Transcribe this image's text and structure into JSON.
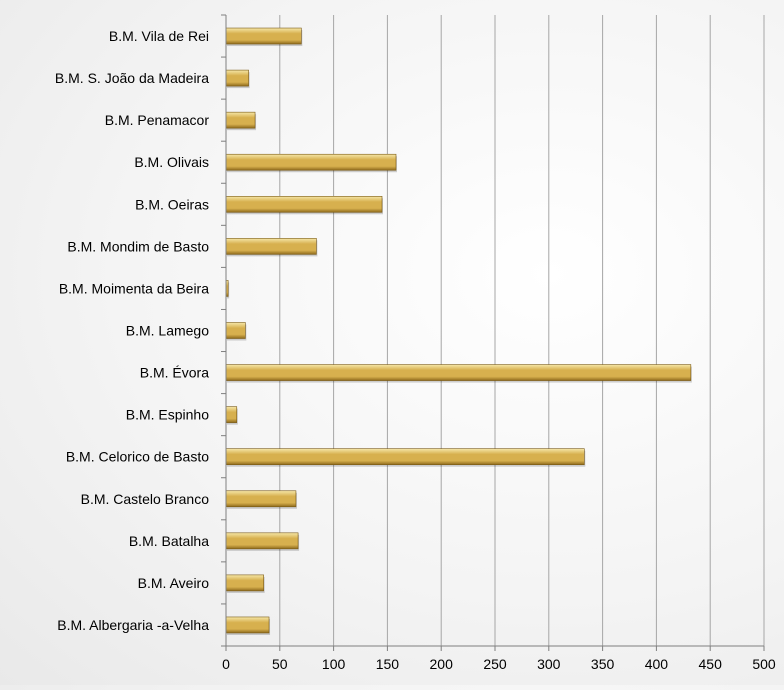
{
  "chart_data": {
    "type": "bar",
    "orientation": "horizontal",
    "categories": [
      "B.M. Vila de Rei",
      "B.M. S. João da Madeira",
      "B.M. Penamacor",
      "B.M. Olivais",
      "B.M. Oeiras",
      "B.M. Mondim de Basto",
      "B.M. Moimenta da Beira",
      "B.M. Lamego",
      "B.M. Évora",
      "B.M. Espinho",
      "B.M. Celorico de Basto",
      "B.M. Castelo Branco",
      "B.M. Batalha",
      "B.M. Aveiro",
      "B.M. Albergaria -a-Velha"
    ],
    "values": [
      70,
      21,
      27,
      158,
      145,
      84,
      2,
      18,
      432,
      10,
      333,
      65,
      67,
      35,
      40
    ],
    "xlim": [
      0,
      500
    ],
    "xticks": [
      "0",
      "50",
      "100",
      "150",
      "200",
      "250",
      "300",
      "350",
      "400",
      "450",
      "500"
    ],
    "title": "",
    "xlabel": "",
    "ylabel": "",
    "grid": "vertical",
    "legend": "none",
    "colors": {
      "bar_light": "#f6e7a8",
      "bar_mid": "#d7b04e",
      "bar_dark": "#8e6a1c",
      "bar_edge": "#7a5a16",
      "gridline": "#a6a6a6",
      "axis": "#7f7f7f"
    }
  }
}
